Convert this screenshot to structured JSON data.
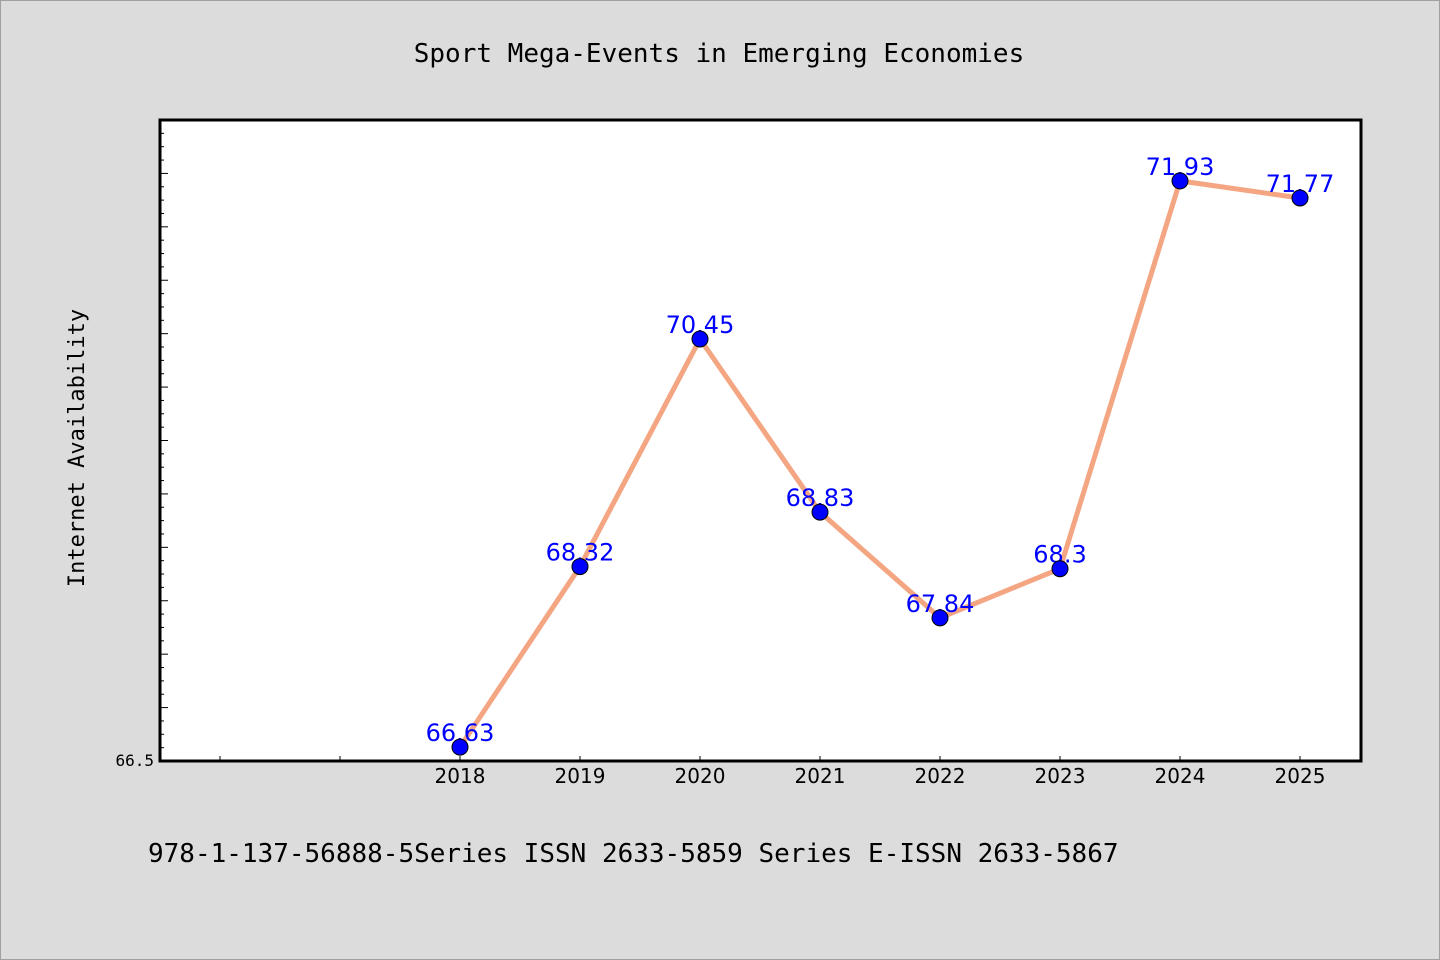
{
  "chart_data": {
    "type": "line",
    "title": "Sport Mega-Events in Emerging Economies",
    "xlabel": "",
    "ylabel": "Internet Availability",
    "categories": [
      "2018",
      "2019",
      "2020",
      "2021",
      "2022",
      "2023",
      "2024",
      "2025"
    ],
    "series": [
      {
        "values": [
          66.63,
          68.32,
          70.45,
          68.83,
          67.84,
          68.3,
          71.93,
          71.77
        ],
        "data_labels": [
          "66.63",
          "68.32",
          "70.45",
          "68.83",
          "67.84",
          "68.3",
          "71.93",
          "71.77"
        ]
      }
    ],
    "ylim": [
      66.5,
      72.5
    ],
    "y_tick_labels": [
      "66.5"
    ],
    "line_color": "#f4a582",
    "marker_color": "#0000ff",
    "label_color": "#0000ff",
    "plot_background": "#ffffff",
    "figure_background": "#dcdcdc",
    "grid": false,
    "legend": "none"
  },
  "footer": {
    "text": "978-1-137-56888-5Series ISSN 2633-5859 Series E-ISSN 2633-5867"
  }
}
